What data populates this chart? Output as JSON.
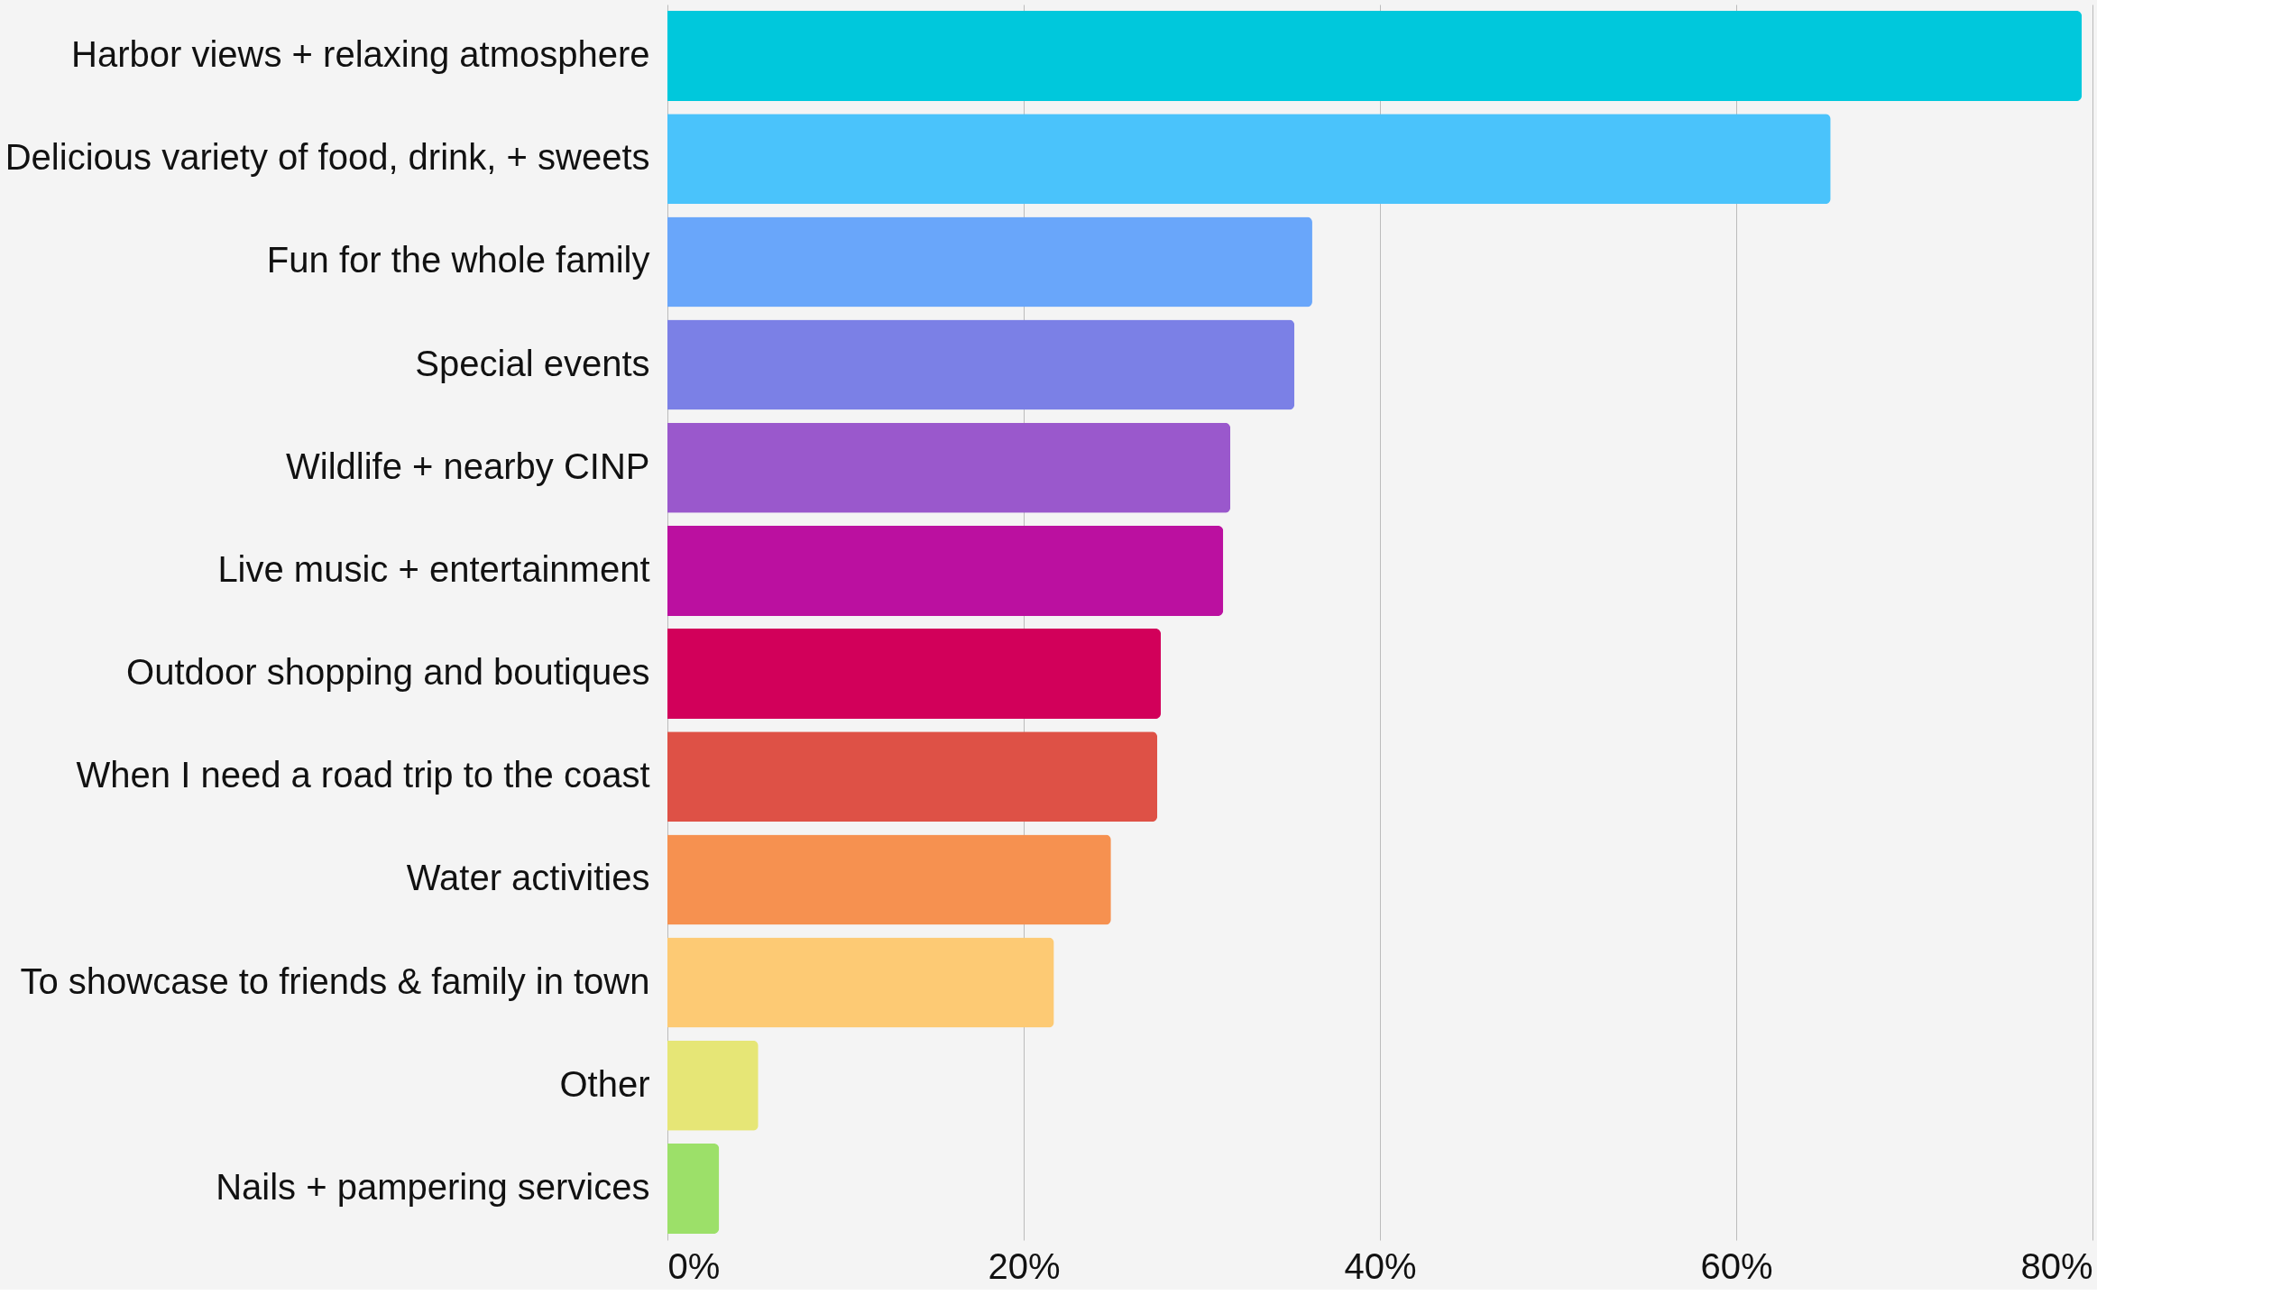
{
  "chart_data": {
    "type": "bar",
    "orientation": "horizontal",
    "categories": [
      "Harbor views + relaxing atmosphere",
      "Delicious variety of food, drink, + sweets",
      "Fun for the whole family",
      "Special events",
      "Wildlife + nearby CINP",
      "Live music + entertainment",
      "Outdoor shopping and boutiques",
      "When I need a road trip to the coast",
      "Water activities",
      "To showcase to friends & family in town",
      "Other",
      "Nails + pampering services"
    ],
    "values": [
      79.4,
      65.3,
      36.2,
      35.2,
      31.6,
      31.2,
      27.7,
      27.5,
      24.9,
      21.7,
      5.1,
      2.9
    ],
    "colors": [
      "#00c8dc",
      "#4ac3fb",
      "#69a6fa",
      "#7b80e6",
      "#9a58cc",
      "#bb10a0",
      "#d2005a",
      "#de5146",
      "#f69150",
      "#fdca74",
      "#e6e676",
      "#9ce069"
    ],
    "xlim": [
      0,
      80
    ],
    "xticks": [
      {
        "value": 0,
        "label": "0%"
      },
      {
        "value": 20,
        "label": "20%"
      },
      {
        "value": 40,
        "label": "40%"
      },
      {
        "value": 60,
        "label": "60%"
      },
      {
        "value": 80,
        "label": "80%"
      }
    ],
    "grid": "x"
  }
}
